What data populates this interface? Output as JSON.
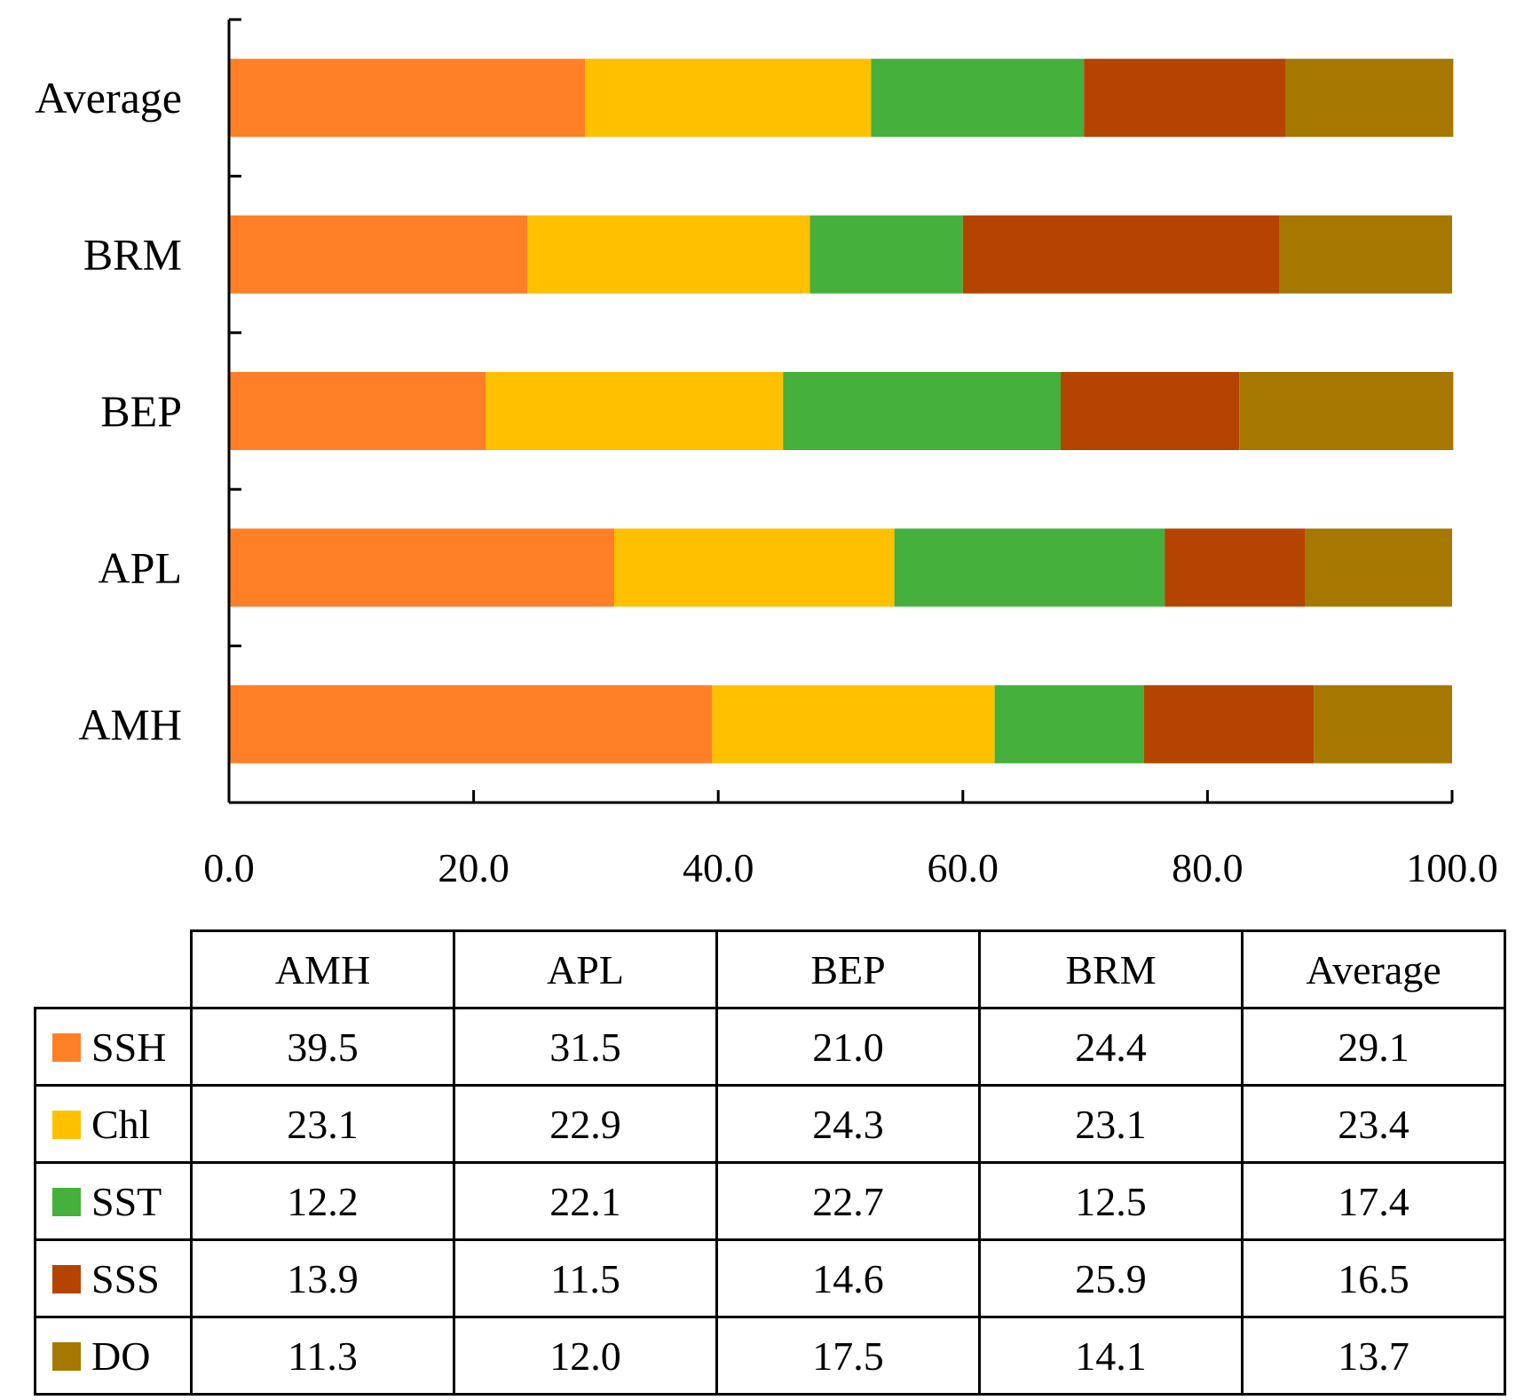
{
  "chart_data": {
    "type": "bar",
    "orientation": "horizontal",
    "stacked": true,
    "categories": [
      "AMH",
      "APL",
      "BEP",
      "BRM",
      "Average"
    ],
    "series": [
      {
        "name": "SSH",
        "color": "#FF7F27",
        "values": [
          39.5,
          31.5,
          21.0,
          24.4,
          29.1
        ]
      },
      {
        "name": "Chl",
        "color": "#FFC000",
        "values": [
          23.1,
          22.9,
          24.3,
          23.1,
          23.4
        ]
      },
      {
        "name": "SST",
        "color": "#45B03C",
        "values": [
          12.2,
          22.1,
          22.7,
          12.5,
          17.4
        ]
      },
      {
        "name": "SSS",
        "color": "#B54400",
        "values": [
          13.9,
          11.5,
          14.6,
          25.9,
          16.5
        ]
      },
      {
        "name": "DO",
        "color": "#A67800",
        "values": [
          11.3,
          12.0,
          17.5,
          14.1,
          13.7
        ]
      }
    ],
    "xlim": [
      0,
      100
    ],
    "xticks": [
      "0.0",
      "20.0",
      "40.0",
      "60.0",
      "80.0",
      "100.0"
    ],
    "title": "",
    "xlabel": "",
    "ylabel": "",
    "legend": "data table below chart"
  },
  "table": {
    "columns": [
      "AMH",
      "APL",
      "BEP",
      "BRM",
      "Average"
    ],
    "rows": [
      {
        "label": "SSH",
        "color": "#FF7F27",
        "values": [
          "39.5",
          "31.5",
          "21.0",
          "24.4",
          "29.1"
        ]
      },
      {
        "label": "Chl",
        "color": "#FFC000",
        "values": [
          "23.1",
          "22.9",
          "24.3",
          "23.1",
          "23.4"
        ]
      },
      {
        "label": "SST",
        "color": "#45B03C",
        "values": [
          "12.2",
          "22.1",
          "22.7",
          "12.5",
          "17.4"
        ]
      },
      {
        "label": "SSS",
        "color": "#B54400",
        "values": [
          "13.9",
          "11.5",
          "14.6",
          "25.9",
          "16.5"
        ]
      },
      {
        "label": "DO",
        "color": "#A67800",
        "values": [
          "11.3",
          "12.0",
          "17.5",
          "14.1",
          "13.7"
        ]
      }
    ]
  }
}
